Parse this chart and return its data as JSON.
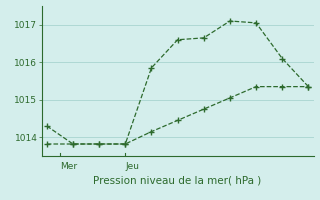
{
  "background_color": "#d4eeec",
  "grid_color": "#aed8d4",
  "line_color": "#2d6a2d",
  "title": "Pression niveau de la mer( hPa )",
  "xlabel_mer": "Mer",
  "xlabel_jeu": "Jeu",
  "ylim": [
    1013.5,
    1017.5
  ],
  "yticks": [
    1014,
    1015,
    1016,
    1017
  ],
  "series1_x": [
    0,
    1,
    2,
    3,
    4,
    5,
    6,
    7,
    8,
    9,
    10
  ],
  "series1_y": [
    1014.3,
    1013.82,
    1013.82,
    1013.82,
    1015.85,
    1016.6,
    1016.65,
    1017.1,
    1017.05,
    1016.1,
    1015.35
  ],
  "series2_x": [
    0,
    1,
    2,
    3,
    4,
    5,
    6,
    7,
    8,
    9,
    10
  ],
  "series2_y": [
    1013.82,
    1013.82,
    1013.82,
    1013.82,
    1014.15,
    1014.45,
    1014.75,
    1015.05,
    1015.35,
    1015.35,
    1015.35
  ],
  "mer_x": 0.5,
  "jeu_x": 3.0,
  "total_points": 10,
  "xlim": [
    -0.2,
    10.2
  ]
}
